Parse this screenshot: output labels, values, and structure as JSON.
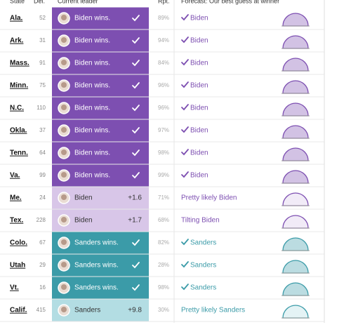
{
  "table": {
    "header": [
      "State",
      "Del.",
      "Current leader",
      "Rpt.",
      "Forecast: Our best guess at winner"
    ],
    "rows": [
      {
        "state": "Ala.",
        "delegates": "52",
        "leader": "Biden wins.",
        "reported": "89%",
        "forecast": "Biden",
        "forecast_check": true,
        "fill": "#7d4fb1",
        "text_color": "#ffffff",
        "accent": "#7d4fb1"
      },
      {
        "state": "Ark.",
        "delegates": "31",
        "leader": "Biden wins.",
        "reported": "94%",
        "forecast": "Biden",
        "forecast_check": true,
        "fill": "#7d4fb1",
        "text_color": "#ffffff",
        "accent": "#7d4fb1"
      },
      {
        "state": "Mass.",
        "delegates": "91",
        "leader": "Biden wins.",
        "reported": "84%",
        "forecast": "Biden",
        "forecast_check": true,
        "fill": "#7d4fb1",
        "text_color": "#ffffff",
        "accent": "#7d4fb1"
      },
      {
        "state": "Minn.",
        "delegates": "75",
        "leader": "Biden wins.",
        "reported": "96%",
        "forecast": "Biden",
        "forecast_check": true,
        "fill": "#7d4fb1",
        "text_color": "#ffffff",
        "accent": "#7d4fb1"
      },
      {
        "state": "N.C.",
        "delegates": "110",
        "leader": "Biden wins.",
        "reported": "96%",
        "forecast": "Biden",
        "forecast_check": true,
        "fill": "#7d4fb1",
        "text_color": "#ffffff",
        "accent": "#7d4fb1"
      },
      {
        "state": "Okla.",
        "delegates": "37",
        "leader": "Biden wins.",
        "reported": "97%",
        "forecast": "Biden",
        "forecast_check": true,
        "fill": "#7d4fb1",
        "text_color": "#ffffff",
        "accent": "#7d4fb1"
      },
      {
        "state": "Tenn.",
        "delegates": "64",
        "leader": "Biden wins.",
        "reported": "98%",
        "forecast": "Biden",
        "forecast_check": true,
        "fill": "#7d4fb1",
        "text_color": "#ffffff",
        "accent": "#7d4fb1"
      },
      {
        "state": "Va.",
        "delegates": "99",
        "leader": "Biden wins.",
        "reported": "99%",
        "forecast": "Biden",
        "forecast_check": true,
        "fill": "#7d4fb1",
        "text_color": "#ffffff",
        "accent": "#7d4fb1"
      },
      {
        "state": "Me.",
        "delegates": "24",
        "leader": "Biden",
        "margin": "+1.6",
        "reported": "71%",
        "forecast": "Pretty likely Biden",
        "forecast_check": false,
        "fill": "#d8c6e8",
        "text_color": "#333333",
        "accent": "#7d4fb1"
      },
      {
        "state": "Tex.",
        "delegates": "228",
        "leader": "Biden",
        "margin": "+1.7",
        "reported": "68%",
        "forecast": "Tilting Biden",
        "forecast_check": false,
        "fill": "#d8c6e8",
        "text_color": "#333333",
        "accent": "#7d4fb1"
      },
      {
        "state": "Colo.",
        "delegates": "67",
        "leader": "Sanders wins.",
        "reported": "82%",
        "forecast": "Sanders",
        "forecast_check": true,
        "fill": "#3b9ba8",
        "text_color": "#ffffff",
        "accent": "#3b9ba8"
      },
      {
        "state": "Utah",
        "delegates": "29",
        "leader": "Sanders wins.",
        "reported": "28%",
        "forecast": "Sanders",
        "forecast_check": true,
        "fill": "#3b9ba8",
        "text_color": "#ffffff",
        "accent": "#3b9ba8"
      },
      {
        "state": "Vt.",
        "delegates": "16",
        "leader": "Sanders wins.",
        "reported": "98%",
        "forecast": "Sanders",
        "forecast_check": true,
        "fill": "#3b9ba8",
        "text_color": "#ffffff",
        "accent": "#3b9ba8"
      },
      {
        "state": "Calif.",
        "delegates": "415",
        "leader": "Sanders",
        "margin": "+9.8",
        "reported": "30%",
        "forecast": "Pretty likely Sanders",
        "forecast_check": false,
        "fill": "#b3dde3",
        "text_color": "#333333",
        "accent": "#3b9ba8"
      }
    ]
  }
}
